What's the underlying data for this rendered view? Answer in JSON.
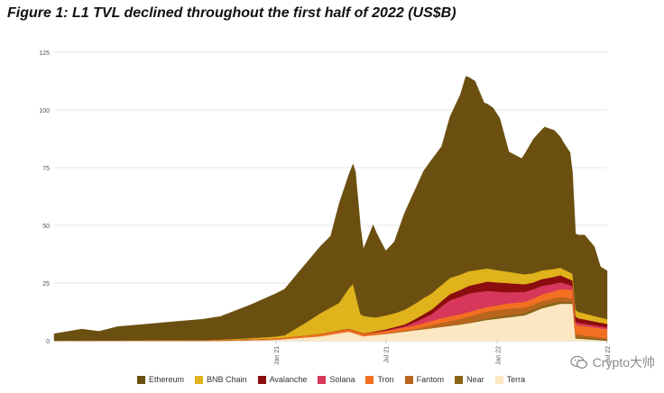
{
  "title": "Figure 1: L1 TVL declined throughout the first half of 2022 (US$B)",
  "watermark": "Crypto大帅",
  "chart_data": {
    "type": "area",
    "stacked": true,
    "grid": "horizontal",
    "legend_position": "bottom",
    "ylim": [
      0,
      125
    ],
    "y_ticks": [
      "0",
      "25",
      "50",
      "75",
      "100",
      "125"
    ],
    "x_ticks": [
      {
        "label": "Jan 21",
        "date": "2021-01-01"
      },
      {
        "label": "Jul 21",
        "date": "2021-07-01"
      },
      {
        "label": "Jan 22",
        "date": "2022-01-01"
      },
      {
        "label": "Jul 22",
        "date": "2022-07-01"
      }
    ],
    "x_start": "2020-01-01",
    "x_end": "2022-07-01",
    "series": [
      {
        "name": "Ethereum",
        "color": "#6b4f10",
        "points": [
          [
            "2020-01-01",
            3
          ],
          [
            "2020-02-15",
            5
          ],
          [
            "2020-03-15",
            4
          ],
          [
            "2020-04-15",
            6
          ],
          [
            "2020-06-01",
            7
          ],
          [
            "2020-07-15",
            8
          ],
          [
            "2020-09-01",
            9
          ],
          [
            "2020-10-01",
            10
          ],
          [
            "2020-11-15",
            14
          ],
          [
            "2020-12-15",
            17
          ],
          [
            "2021-01-15",
            20
          ],
          [
            "2021-02-15",
            25
          ],
          [
            "2021-03-01",
            27
          ],
          [
            "2021-03-15",
            29
          ],
          [
            "2021-04-01",
            31
          ],
          [
            "2021-04-15",
            43
          ],
          [
            "2021-05-08",
            52
          ],
          [
            "2021-05-12",
            53
          ],
          [
            "2021-05-25",
            29
          ],
          [
            "2021-06-10",
            40
          ],
          [
            "2021-06-20",
            34
          ],
          [
            "2021-07-01",
            28
          ],
          [
            "2021-07-15",
            31
          ],
          [
            "2021-08-01",
            42
          ],
          [
            "2021-08-15",
            48
          ],
          [
            "2021-09-01",
            55
          ],
          [
            "2021-09-15",
            58
          ],
          [
            "2021-10-01",
            60
          ],
          [
            "2021-10-15",
            70
          ],
          [
            "2021-11-01",
            78
          ],
          [
            "2021-11-10",
            85
          ],
          [
            "2021-11-25",
            82
          ],
          [
            "2021-12-10",
            72
          ],
          [
            "2021-12-25",
            70
          ],
          [
            "2022-01-05",
            66
          ],
          [
            "2022-01-20",
            52
          ],
          [
            "2022-02-10",
            50
          ],
          [
            "2022-03-01",
            58
          ],
          [
            "2022-03-20",
            62
          ],
          [
            "2022-04-05",
            60
          ],
          [
            "2022-04-20",
            55
          ],
          [
            "2022-05-01",
            52
          ],
          [
            "2022-05-10",
            33
          ],
          [
            "2022-05-25",
            34
          ],
          [
            "2022-06-10",
            30
          ],
          [
            "2022-06-20",
            22
          ],
          [
            "2022-07-01",
            21
          ]
        ]
      },
      {
        "name": "BNB Chain",
        "color": "#e0b21b",
        "points": [
          [
            "2020-01-01",
            0
          ],
          [
            "2020-09-01",
            0.1
          ],
          [
            "2020-12-01",
            0.5
          ],
          [
            "2021-01-15",
            1
          ],
          [
            "2021-02-15",
            5
          ],
          [
            "2021-03-15",
            9
          ],
          [
            "2021-04-15",
            12
          ],
          [
            "2021-05-08",
            20
          ],
          [
            "2021-05-20",
            8
          ],
          [
            "2021-06-15",
            6
          ],
          [
            "2021-07-15",
            6
          ],
          [
            "2021-09-01",
            7
          ],
          [
            "2021-10-15",
            7
          ],
          [
            "2021-12-01",
            6
          ],
          [
            "2022-01-15",
            5
          ],
          [
            "2022-03-01",
            4
          ],
          [
            "2022-05-01",
            3
          ],
          [
            "2022-07-01",
            2
          ]
        ]
      },
      {
        "name": "Avalanche",
        "color": "#8b0d0d",
        "points": [
          [
            "2020-01-01",
            0
          ],
          [
            "2021-02-01",
            0
          ],
          [
            "2021-06-01",
            0.2
          ],
          [
            "2021-08-01",
            0.8
          ],
          [
            "2021-09-15",
            2
          ],
          [
            "2021-11-01",
            3
          ],
          [
            "2021-12-15",
            4
          ],
          [
            "2022-01-15",
            4
          ],
          [
            "2022-03-01",
            3
          ],
          [
            "2022-04-15",
            3
          ],
          [
            "2022-05-15",
            2
          ],
          [
            "2022-07-01",
            1.5
          ]
        ]
      },
      {
        "name": "Solana",
        "color": "#d6375a",
        "points": [
          [
            "2020-01-01",
            0
          ],
          [
            "2021-06-01",
            0
          ],
          [
            "2021-08-01",
            0.5
          ],
          [
            "2021-09-15",
            3
          ],
          [
            "2021-10-15",
            7
          ],
          [
            "2021-11-15",
            8
          ],
          [
            "2021-12-15",
            7
          ],
          [
            "2022-01-15",
            5
          ],
          [
            "2022-03-01",
            4
          ],
          [
            "2022-04-15",
            3
          ],
          [
            "2022-05-15",
            1
          ],
          [
            "2022-07-01",
            0.8
          ]
        ]
      },
      {
        "name": "Tron",
        "color": "#f36f21",
        "points": [
          [
            "2020-01-01",
            0
          ],
          [
            "2020-09-01",
            0.2
          ],
          [
            "2021-01-01",
            0.5
          ],
          [
            "2021-04-15",
            1
          ],
          [
            "2021-07-01",
            1
          ],
          [
            "2021-10-01",
            2
          ],
          [
            "2022-01-01",
            2
          ],
          [
            "2022-04-01",
            3
          ],
          [
            "2022-05-10",
            4
          ],
          [
            "2022-07-01",
            4
          ]
        ]
      },
      {
        "name": "Fantom",
        "color": "#b8651d",
        "points": [
          [
            "2020-01-01",
            0
          ],
          [
            "2021-06-01",
            0
          ],
          [
            "2021-08-15",
            0.5
          ],
          [
            "2021-10-15",
            2
          ],
          [
            "2021-12-15",
            3
          ],
          [
            "2022-01-15",
            3
          ],
          [
            "2022-03-01",
            2
          ],
          [
            "2022-04-15",
            2
          ],
          [
            "2022-05-15",
            1
          ],
          [
            "2022-07-01",
            0.5
          ]
        ]
      },
      {
        "name": "Near",
        "color": "#8a6416",
        "points": [
          [
            "2020-01-01",
            0
          ],
          [
            "2021-09-01",
            0
          ],
          [
            "2021-11-01",
            0.2
          ],
          [
            "2022-01-01",
            0.8
          ],
          [
            "2022-03-15",
            1.2
          ],
          [
            "2022-04-15",
            1
          ],
          [
            "2022-05-15",
            0.8
          ],
          [
            "2022-07-01",
            0.5
          ]
        ]
      },
      {
        "name": "Terra",
        "color": "#fce7c2",
        "points": [
          [
            "2020-01-01",
            0
          ],
          [
            "2020-10-01",
            0
          ],
          [
            "2021-01-01",
            0.5
          ],
          [
            "2021-03-15",
            2
          ],
          [
            "2021-05-01",
            4
          ],
          [
            "2021-05-25",
            2
          ],
          [
            "2021-07-01",
            3
          ],
          [
            "2021-09-01",
            5
          ],
          [
            "2021-11-01",
            7
          ],
          [
            "2021-12-15",
            9
          ],
          [
            "2022-01-15",
            10
          ],
          [
            "2022-02-15",
            11
          ],
          [
            "2022-03-15",
            14
          ],
          [
            "2022-04-15",
            16
          ],
          [
            "2022-05-05",
            16
          ],
          [
            "2022-05-10",
            1
          ],
          [
            "2022-07-01",
            0
          ]
        ]
      }
    ]
  }
}
